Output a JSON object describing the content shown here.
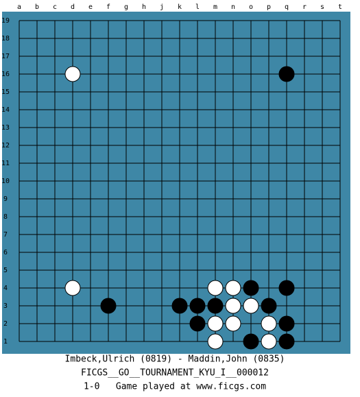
{
  "columns": [
    "a",
    "b",
    "c",
    "d",
    "e",
    "f",
    "g",
    "h",
    "j",
    "k",
    "l",
    "m",
    "n",
    "o",
    "p",
    "q",
    "r",
    "s",
    "t"
  ],
  "rows": [
    19,
    18,
    17,
    16,
    15,
    14,
    13,
    12,
    11,
    10,
    9,
    8,
    7,
    6,
    5,
    4,
    3,
    2,
    1
  ],
  "stones": [
    {
      "color": "white",
      "col": "d",
      "row": 16
    },
    {
      "color": "black",
      "col": "q",
      "row": 16
    },
    {
      "color": "white",
      "col": "d",
      "row": 4
    },
    {
      "color": "white",
      "col": "m",
      "row": 4
    },
    {
      "color": "white",
      "col": "n",
      "row": 4
    },
    {
      "color": "black",
      "col": "o",
      "row": 4
    },
    {
      "color": "black",
      "col": "q",
      "row": 4
    },
    {
      "color": "black",
      "col": "f",
      "row": 3
    },
    {
      "color": "black",
      "col": "k",
      "row": 3
    },
    {
      "color": "black",
      "col": "l",
      "row": 3
    },
    {
      "color": "black",
      "col": "m",
      "row": 3
    },
    {
      "color": "white",
      "col": "n",
      "row": 3
    },
    {
      "color": "white",
      "col": "o",
      "row": 3
    },
    {
      "color": "black",
      "col": "p",
      "row": 3
    },
    {
      "color": "black",
      "col": "l",
      "row": 2
    },
    {
      "color": "white",
      "col": "m",
      "row": 2
    },
    {
      "color": "white",
      "col": "n",
      "row": 2
    },
    {
      "color": "white",
      "col": "p",
      "row": 2
    },
    {
      "color": "black",
      "col": "q",
      "row": 2
    },
    {
      "color": "white",
      "col": "m",
      "row": 1
    },
    {
      "color": "black",
      "col": "o",
      "row": 1
    },
    {
      "color": "white",
      "col": "p",
      "row": 1
    },
    {
      "color": "black",
      "col": "q",
      "row": 1
    }
  ],
  "caption": {
    "players": "Imbeck,Ulrich (0819) - Maddin,John (0835)",
    "tournament": "FICGS__GO__TOURNAMENT_KYU_I__000012",
    "result": "1-0   Game played at www.ficgs.com"
  }
}
